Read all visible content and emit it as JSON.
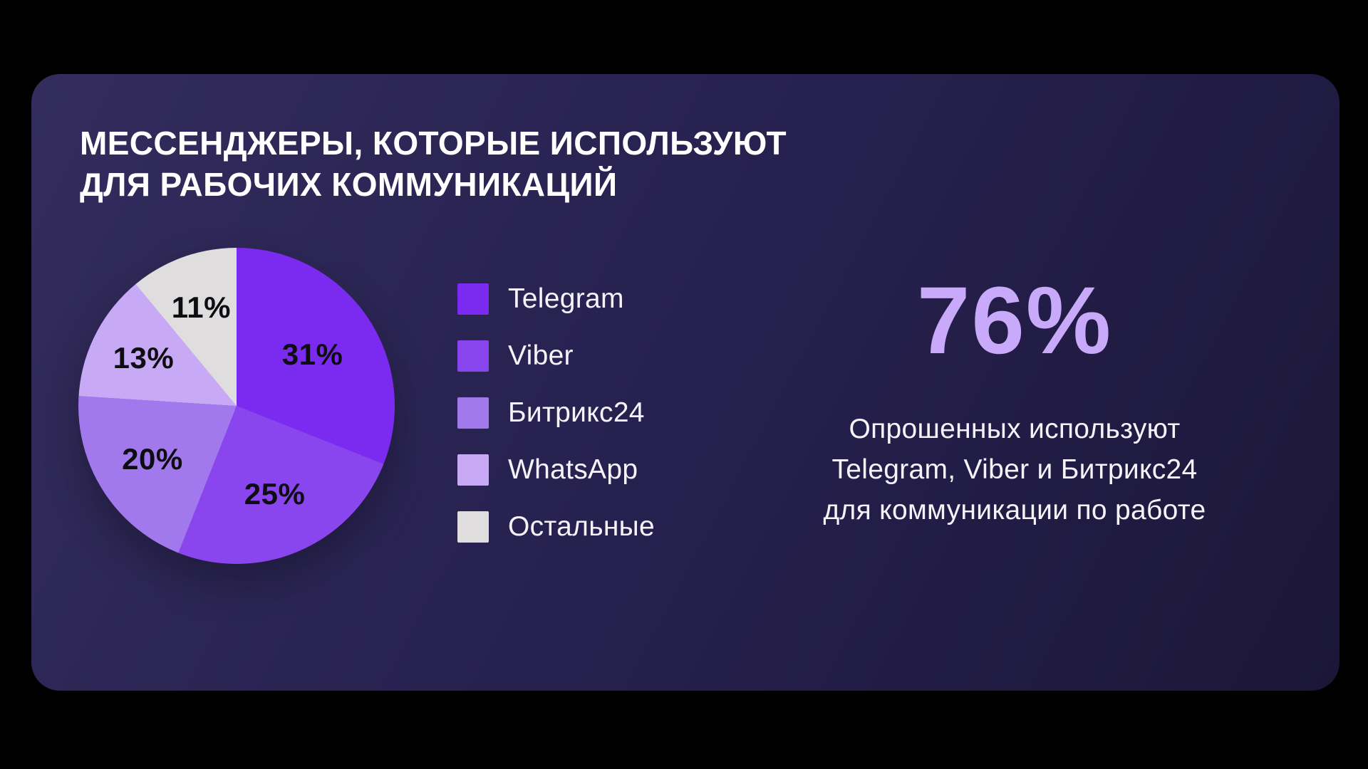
{
  "title": {
    "line1": "МЕССЕНДЖЕРЫ, КОТОРЫЕ ИСПОЛЬЗУЮТ",
    "line2": "ДЛЯ РАБОЧИХ КОММУНИКАЦИЙ"
  },
  "chart_data": {
    "type": "pie",
    "title": "Мессенджеры, которые используют для рабочих коммуникаций",
    "direction": "clockwise",
    "start_angle_deg": 0,
    "legend_position": "right",
    "labels": "percent-inside",
    "segments": [
      {
        "label": "Telegram",
        "value": 31,
        "percent_label": "31%",
        "color": "#7b2bf0"
      },
      {
        "label": "Viber",
        "value": 25,
        "percent_label": "25%",
        "color": "#8a46ee"
      },
      {
        "label": "Битрикс24",
        "value": 20,
        "percent_label": "20%",
        "color": "#a279ec"
      },
      {
        "label": "WhatsApp",
        "value": 13,
        "percent_label": "13%",
        "color": "#c7a9f5"
      },
      {
        "label": "Остальные",
        "value": 11,
        "percent_label": "11%",
        "color": "#dfddde"
      }
    ]
  },
  "highlight": {
    "value": "76%",
    "description_lines": [
      "Опрошенных используют",
      "Telegram, Viber и Битрикс24",
      "для коммуникации по работе"
    ]
  },
  "colors": {
    "page_background": "#000000",
    "card_gradient_start": "#332c5c",
    "card_gradient_mid": "#272150",
    "card_gradient_end": "#1c1738",
    "title_text": "#ffffff",
    "legend_text": "#f5f3fa",
    "stat_value": "#c9a9f9",
    "stat_text": "#f5f3fa",
    "pie_label_text": "#0d0d12"
  }
}
